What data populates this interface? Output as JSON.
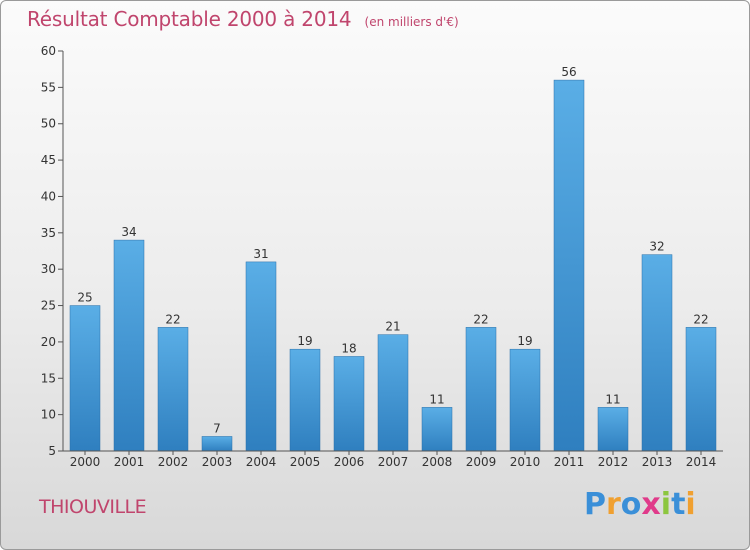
{
  "header": {
    "title": "Résultat Comptable 2000 à 2014",
    "unit": "(en milliers d'€)"
  },
  "footer": {
    "commune": "THIOUVILLE"
  },
  "logo": {
    "letters": [
      "P",
      "r",
      "o",
      "x",
      "i",
      "t",
      "i"
    ],
    "colors": [
      "#3a8fd8",
      "#f0a030",
      "#3a8fd8",
      "#e03a8a",
      "#8cc63f",
      "#3a8fd8",
      "#f0a030"
    ]
  },
  "colors": {
    "bar_light": "#5aaee6",
    "bar_dark": "#2f7fbf",
    "title": "#c0456d"
  },
  "chart_data": {
    "type": "bar",
    "title": "Résultat Comptable 2000 à 2014",
    "subtitle": "(en milliers d'€)",
    "categories": [
      "2000",
      "2001",
      "2002",
      "2003",
      "2004",
      "2005",
      "2006",
      "2007",
      "2008",
      "2009",
      "2010",
      "2011",
      "2012",
      "2013",
      "2014"
    ],
    "values": [
      25,
      34,
      22,
      7,
      31,
      19,
      18,
      21,
      11,
      22,
      19,
      56,
      11,
      32,
      22
    ],
    "ylim": [
      5,
      60
    ],
    "yticks": [
      5,
      10,
      15,
      20,
      25,
      30,
      35,
      40,
      45,
      50,
      55,
      60
    ],
    "grid": false,
    "legend": "none"
  }
}
